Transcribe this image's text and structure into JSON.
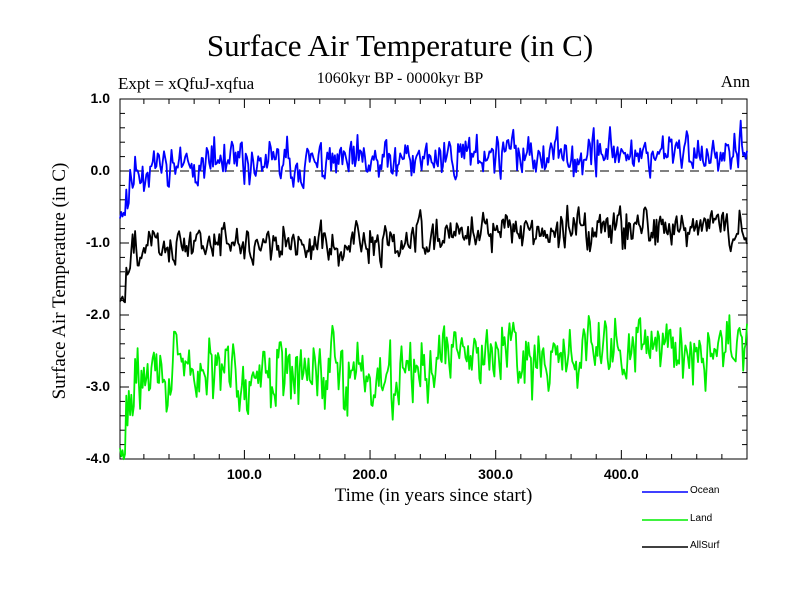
{
  "chart_data": {
    "type": "line",
    "title": "Surface Air Temperature (in C)",
    "experiment": "Expt = xQfuJ-xqfua",
    "period": "1060kyr BP - 0000kyr BP",
    "season": "Ann",
    "xlabel": "Time (in years since start)",
    "ylabel": "Surface Air Temperature (in C)",
    "xlim": [
      1,
      500
    ],
    "ylim": [
      -4.0,
      1.0
    ],
    "x_ticks": [
      100,
      200,
      300,
      400
    ],
    "x_tick_labels": [
      "100.0",
      "200.0",
      "300.0",
      "400.0"
    ],
    "y_ticks": [
      1.0,
      0.0,
      -1.0,
      -2.0,
      -3.0,
      -4.0
    ],
    "y_tick_labels": [
      "1.0",
      "0.0",
      "-1.0",
      "-2.0",
      "-3.0",
      "-4.0"
    ],
    "reference_line": 0.0,
    "legend_position": "bottom-right, below plot",
    "series": [
      {
        "name": "Ocean",
        "color": "#0000ff",
        "start": -0.6,
        "spinup": 25,
        "plateau1": 0.1,
        "plateau2": 0.25,
        "step_year": 250,
        "noise": 0.14,
        "seed": 11
      },
      {
        "name": "Land",
        "color": "#00ee00",
        "start": -3.9,
        "spinup": 25,
        "plateau1": -2.8,
        "plateau2": -2.5,
        "step_year": 250,
        "noise": 0.22,
        "seed": 29
      },
      {
        "name": "AllSurf",
        "color": "#000000",
        "start": -1.8,
        "spinup": 25,
        "plateau1": -1.0,
        "plateau2": -0.8,
        "step_year": 250,
        "noise": 0.13,
        "seed": 47
      }
    ]
  }
}
